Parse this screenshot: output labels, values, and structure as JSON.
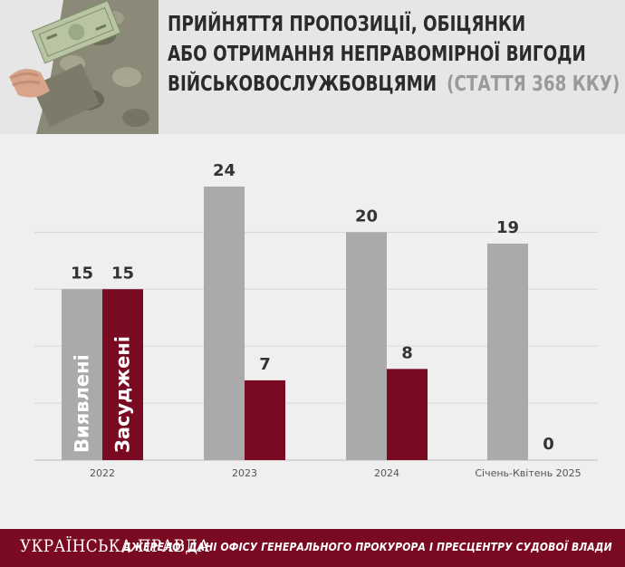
{
  "header": {
    "title_line1": "Прийняття пропозиції, обіцянки",
    "title_line2": "або отримання неправомірної вигоди",
    "title_line3": "військовослужбовцями",
    "title_sub": "(стаття 368 ККУ)"
  },
  "footer": {
    "brand": "УКРАЇНСЬКА ПРАВДА",
    "source": "ДЖЕРЕЛО: ДАНІ ОФІСУ ГЕНЕРАЛЬНОГО ПРОКУРОРА І ПРЕСЦЕНТРУ СУДОВОЇ ВЛАДИ"
  },
  "colors": {
    "detected": "#aaaaaa",
    "convicted": "#7a0a21",
    "grid": "#d6d6d6",
    "background": "#efefef"
  },
  "chart_data": {
    "type": "bar",
    "categories": [
      "2022",
      "2023",
      "2024",
      "Січень-Квітень 2025"
    ],
    "series": [
      {
        "name": "Виявлені",
        "values": [
          15,
          24,
          20,
          19
        ]
      },
      {
        "name": "Засуджені",
        "values": [
          15,
          7,
          8,
          0
        ]
      }
    ],
    "ylim": [
      0,
      24
    ],
    "grid": true,
    "legend": "inside first bar pair (vertical labels)"
  }
}
